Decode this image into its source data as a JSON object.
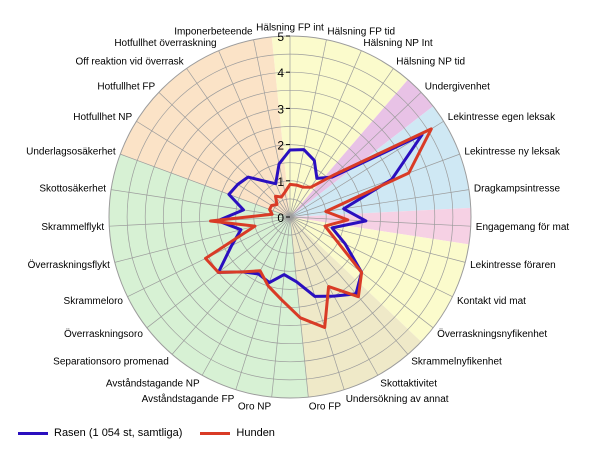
{
  "chart_data": {
    "type": "radar",
    "title": "",
    "rlim": [
      0,
      5
    ],
    "ticks": [
      0,
      1,
      2,
      3,
      4,
      5
    ],
    "grid": true,
    "legend_position": "bottom-left",
    "categories": [
      "Hälsning FP int",
      "Hälsning FP tid",
      "Hälsning NP Int",
      "Hälsning NP tid",
      "Undergivenhet",
      "Lekintresse egen leksak",
      "Lekintresse ny leksak",
      "Dragkampsintresse",
      "Engagemang för mat",
      "Lekintresse föraren",
      "Kontakt vid mat",
      "Överraskningsnyfikenhet",
      "Skrammelnyfikenhet",
      "Skottaktivitet",
      "Undersökning av annat",
      "Oro FP",
      "Oro NP",
      "Avståndstagande FP",
      "Avståndstagande NP",
      "Separationsoro promenad",
      "Överraskningsoro",
      "Skrammeloro",
      "Överraskningsflykt",
      "Skrammelflykt",
      "Skottosäkerhet",
      "Underlagsosäkerhet",
      "Hotfullhet NP",
      "Hotfullhet FP",
      "Off reaktion vid överrask",
      "Hotfullhet överraskning",
      "Imponerbeteende"
    ],
    "sectors": [
      {
        "start": 0,
        "end": 4,
        "color": "#fbfbcc"
      },
      {
        "start": 4,
        "end": 5,
        "color": "#e8c2e6"
      },
      {
        "start": 5,
        "end": 8,
        "color": "#cfe8f4"
      },
      {
        "start": 8,
        "end": 9,
        "color": "#f6d1e4"
      },
      {
        "start": 9,
        "end": 12,
        "color": "#fbfbcc"
      },
      {
        "start": 12,
        "end": 15.5,
        "color": "#efe9c8"
      },
      {
        "start": 15.5,
        "end": 25.5,
        "color": "#d7f1d4"
      },
      {
        "start": 25.5,
        "end": 31,
        "color": "#fbe3c7"
      }
    ],
    "series": [
      {
        "name": "Rasen (1 054 st, samtliga)",
        "color": "#2a0fbf",
        "values": [
          1.85,
          1.9,
          1.7,
          1.3,
          1.6,
          4.3,
          3.0,
          1.5,
          2.1,
          1.2,
          1.7,
          2.5,
          2.8,
          2.5,
          2.3,
          1.8,
          1.6,
          1.9,
          1.8,
          2.0,
          2.5,
          1.8,
          1.4,
          2.0,
          1.3,
          1.8,
          1.7,
          1.6,
          1.2,
          1.0,
          1.5
        ]
      },
      {
        "name": "Hunden",
        "color": "#d93b26",
        "values": [
          0.9,
          0.9,
          0.9,
          1.0,
          1.7,
          4.6,
          3.5,
          1.0,
          1.6,
          1.0,
          1.4,
          2.5,
          2.9,
          2.2,
          3.2,
          2.8,
          2.3,
          2.0,
          1.7,
          2.0,
          2.5,
          2.6,
          1.0,
          2.2,
          0.5,
          0.6,
          0.6,
          0.5,
          0.7,
          0.6,
          0.7
        ]
      }
    ]
  },
  "colors": {
    "grid": "#9c9c9c",
    "axis_tick": "#000000"
  }
}
